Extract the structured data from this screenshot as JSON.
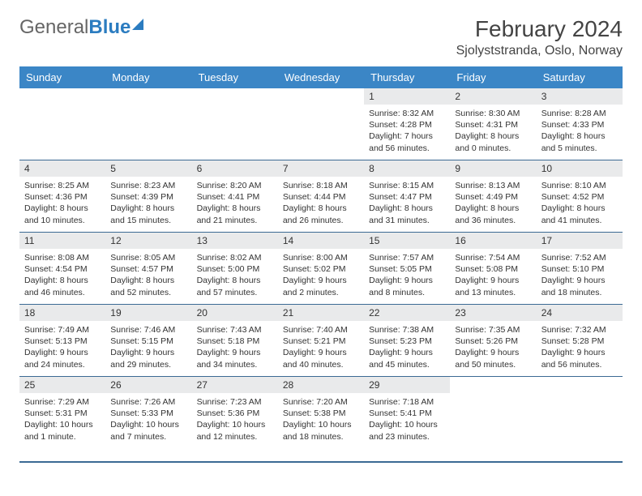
{
  "logo": {
    "part1": "General",
    "part2": "Blue"
  },
  "title": "February 2024",
  "location": "Sjolyststranda, Oslo, Norway",
  "weekdays": [
    "Sunday",
    "Monday",
    "Tuesday",
    "Wednesday",
    "Thursday",
    "Friday",
    "Saturday"
  ],
  "colors": {
    "header_bg": "#3b86c6",
    "border": "#3b6a94",
    "daynum_bg": "#e9eaeb",
    "logo_blue": "#2b7cc0"
  },
  "weeks": [
    [
      {
        "empty": true
      },
      {
        "empty": true
      },
      {
        "empty": true
      },
      {
        "empty": true
      },
      {
        "num": "1",
        "sunrise": "Sunrise: 8:32 AM",
        "sunset": "Sunset: 4:28 PM",
        "daylight": "Daylight: 7 hours and 56 minutes."
      },
      {
        "num": "2",
        "sunrise": "Sunrise: 8:30 AM",
        "sunset": "Sunset: 4:31 PM",
        "daylight": "Daylight: 8 hours and 0 minutes."
      },
      {
        "num": "3",
        "sunrise": "Sunrise: 8:28 AM",
        "sunset": "Sunset: 4:33 PM",
        "daylight": "Daylight: 8 hours and 5 minutes."
      }
    ],
    [
      {
        "num": "4",
        "sunrise": "Sunrise: 8:25 AM",
        "sunset": "Sunset: 4:36 PM",
        "daylight": "Daylight: 8 hours and 10 minutes."
      },
      {
        "num": "5",
        "sunrise": "Sunrise: 8:23 AM",
        "sunset": "Sunset: 4:39 PM",
        "daylight": "Daylight: 8 hours and 15 minutes."
      },
      {
        "num": "6",
        "sunrise": "Sunrise: 8:20 AM",
        "sunset": "Sunset: 4:41 PM",
        "daylight": "Daylight: 8 hours and 21 minutes."
      },
      {
        "num": "7",
        "sunrise": "Sunrise: 8:18 AM",
        "sunset": "Sunset: 4:44 PM",
        "daylight": "Daylight: 8 hours and 26 minutes."
      },
      {
        "num": "8",
        "sunrise": "Sunrise: 8:15 AM",
        "sunset": "Sunset: 4:47 PM",
        "daylight": "Daylight: 8 hours and 31 minutes."
      },
      {
        "num": "9",
        "sunrise": "Sunrise: 8:13 AM",
        "sunset": "Sunset: 4:49 PM",
        "daylight": "Daylight: 8 hours and 36 minutes."
      },
      {
        "num": "10",
        "sunrise": "Sunrise: 8:10 AM",
        "sunset": "Sunset: 4:52 PM",
        "daylight": "Daylight: 8 hours and 41 minutes."
      }
    ],
    [
      {
        "num": "11",
        "sunrise": "Sunrise: 8:08 AM",
        "sunset": "Sunset: 4:54 PM",
        "daylight": "Daylight: 8 hours and 46 minutes."
      },
      {
        "num": "12",
        "sunrise": "Sunrise: 8:05 AM",
        "sunset": "Sunset: 4:57 PM",
        "daylight": "Daylight: 8 hours and 52 minutes."
      },
      {
        "num": "13",
        "sunrise": "Sunrise: 8:02 AM",
        "sunset": "Sunset: 5:00 PM",
        "daylight": "Daylight: 8 hours and 57 minutes."
      },
      {
        "num": "14",
        "sunrise": "Sunrise: 8:00 AM",
        "sunset": "Sunset: 5:02 PM",
        "daylight": "Daylight: 9 hours and 2 minutes."
      },
      {
        "num": "15",
        "sunrise": "Sunrise: 7:57 AM",
        "sunset": "Sunset: 5:05 PM",
        "daylight": "Daylight: 9 hours and 8 minutes."
      },
      {
        "num": "16",
        "sunrise": "Sunrise: 7:54 AM",
        "sunset": "Sunset: 5:08 PM",
        "daylight": "Daylight: 9 hours and 13 minutes."
      },
      {
        "num": "17",
        "sunrise": "Sunrise: 7:52 AM",
        "sunset": "Sunset: 5:10 PM",
        "daylight": "Daylight: 9 hours and 18 minutes."
      }
    ],
    [
      {
        "num": "18",
        "sunrise": "Sunrise: 7:49 AM",
        "sunset": "Sunset: 5:13 PM",
        "daylight": "Daylight: 9 hours and 24 minutes."
      },
      {
        "num": "19",
        "sunrise": "Sunrise: 7:46 AM",
        "sunset": "Sunset: 5:15 PM",
        "daylight": "Daylight: 9 hours and 29 minutes."
      },
      {
        "num": "20",
        "sunrise": "Sunrise: 7:43 AM",
        "sunset": "Sunset: 5:18 PM",
        "daylight": "Daylight: 9 hours and 34 minutes."
      },
      {
        "num": "21",
        "sunrise": "Sunrise: 7:40 AM",
        "sunset": "Sunset: 5:21 PM",
        "daylight": "Daylight: 9 hours and 40 minutes."
      },
      {
        "num": "22",
        "sunrise": "Sunrise: 7:38 AM",
        "sunset": "Sunset: 5:23 PM",
        "daylight": "Daylight: 9 hours and 45 minutes."
      },
      {
        "num": "23",
        "sunrise": "Sunrise: 7:35 AM",
        "sunset": "Sunset: 5:26 PM",
        "daylight": "Daylight: 9 hours and 50 minutes."
      },
      {
        "num": "24",
        "sunrise": "Sunrise: 7:32 AM",
        "sunset": "Sunset: 5:28 PM",
        "daylight": "Daylight: 9 hours and 56 minutes."
      }
    ],
    [
      {
        "num": "25",
        "sunrise": "Sunrise: 7:29 AM",
        "sunset": "Sunset: 5:31 PM",
        "daylight": "Daylight: 10 hours and 1 minute."
      },
      {
        "num": "26",
        "sunrise": "Sunrise: 7:26 AM",
        "sunset": "Sunset: 5:33 PM",
        "daylight": "Daylight: 10 hours and 7 minutes."
      },
      {
        "num": "27",
        "sunrise": "Sunrise: 7:23 AM",
        "sunset": "Sunset: 5:36 PM",
        "daylight": "Daylight: 10 hours and 12 minutes."
      },
      {
        "num": "28",
        "sunrise": "Sunrise: 7:20 AM",
        "sunset": "Sunset: 5:38 PM",
        "daylight": "Daylight: 10 hours and 18 minutes."
      },
      {
        "num": "29",
        "sunrise": "Sunrise: 7:18 AM",
        "sunset": "Sunset: 5:41 PM",
        "daylight": "Daylight: 10 hours and 23 minutes."
      },
      {
        "empty": true
      },
      {
        "empty": true
      }
    ]
  ]
}
